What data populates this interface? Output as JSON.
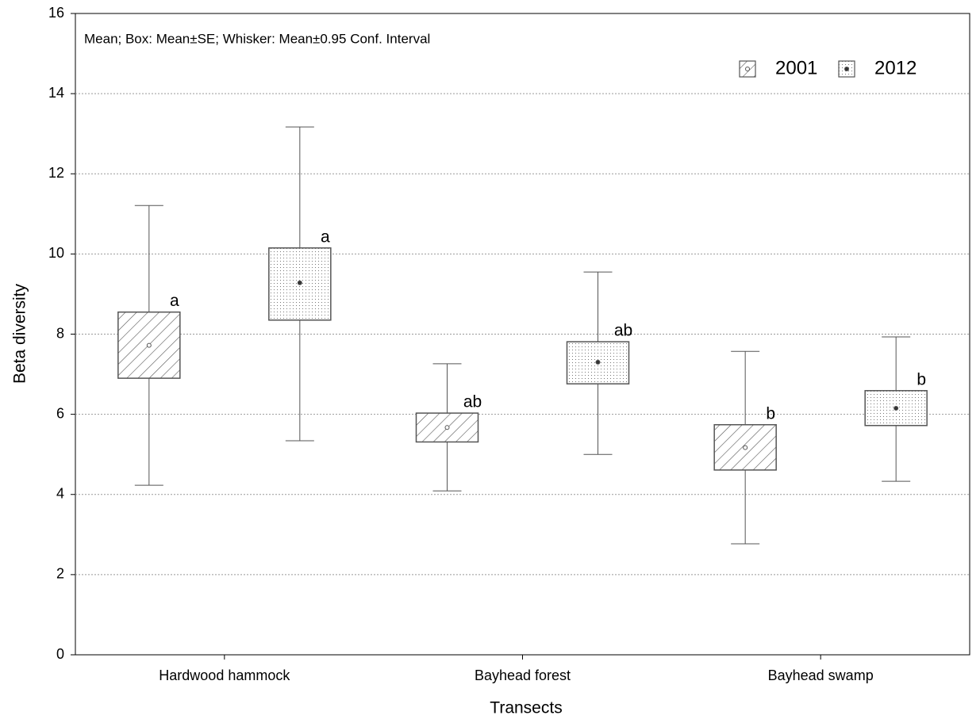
{
  "chart_data": {
    "type": "box",
    "annotation": "Mean; Box: Mean±SE; Whisker: Mean±0.95 Conf. Interval",
    "x_label": "Transects",
    "y_label": "Beta diversity",
    "categories": [
      "Hardwood hammock",
      "Bayhead forest",
      "Bayhead swamp"
    ],
    "ylim": [
      0,
      16
    ],
    "yticks": [
      0,
      2,
      4,
      6,
      8,
      10,
      12,
      14,
      16
    ],
    "grid": true,
    "legend": "top-right",
    "series": [
      {
        "name": "2001",
        "pattern": "hatch",
        "color": "#555555",
        "mean": [
          7.72,
          5.67,
          5.17
        ],
        "box_low": [
          6.9,
          5.31,
          4.61
        ],
        "box_high": [
          8.55,
          6.03,
          5.74
        ],
        "whisker_low": [
          4.23,
          4.09,
          2.77
        ],
        "whisker_high": [
          11.21,
          7.26,
          7.57
        ],
        "labels": [
          "a",
          "ab",
          "b"
        ]
      },
      {
        "name": "2012",
        "pattern": "dots",
        "color": "#555555",
        "mean": [
          9.28,
          7.3,
          6.15
        ],
        "box_low": [
          8.35,
          6.76,
          5.72
        ],
        "box_high": [
          10.15,
          7.81,
          6.59
        ],
        "whisker_low": [
          5.34,
          5.0,
          4.33
        ],
        "whisker_high": [
          13.17,
          9.55,
          7.93
        ],
        "labels": [
          "a",
          "ab",
          "b"
        ]
      }
    ]
  }
}
